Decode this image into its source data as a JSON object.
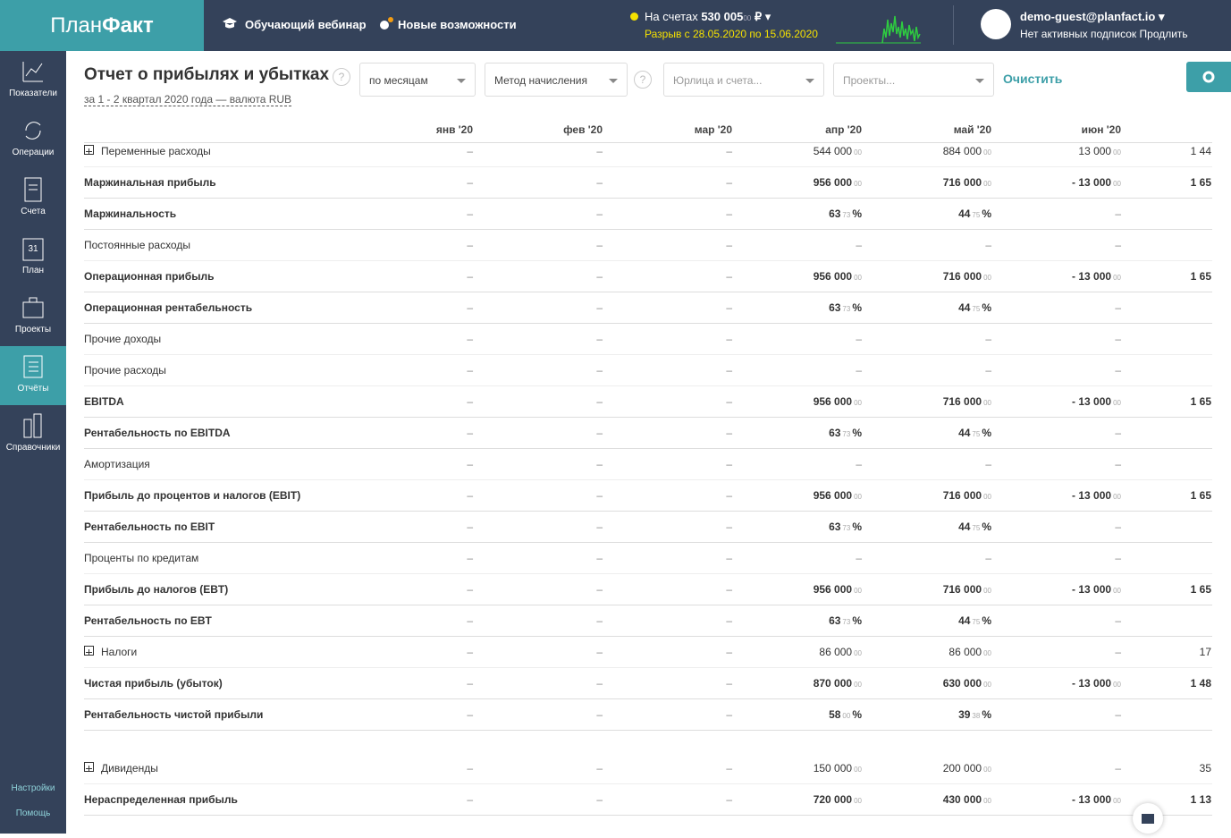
{
  "header": {
    "logo": {
      "light": "План",
      "bold": "Факт"
    },
    "webinar": "Обучающий вебинар",
    "features": "Новые возможности",
    "balance": {
      "label": "На счетах",
      "amount": "530 005",
      "frac": "00",
      "currency": "₽"
    },
    "gap": "Разрыв с 28.05.2020 по 15.06.2020",
    "user": {
      "email": "demo-guest@planfact.io",
      "subscription": "Нет активных подписок",
      "renew": "Продлить"
    }
  },
  "sidebar": {
    "items": [
      "Показатели",
      "Операции",
      "Счета",
      "План",
      "Проекты",
      "Отчёты",
      "Справочники"
    ],
    "active": 5,
    "calendar_day": "31",
    "bottom": [
      "Настройки",
      "Помощь"
    ]
  },
  "report": {
    "title": "Отчет о прибылях и убытках",
    "help": "?",
    "subtitle": "за 1 - 2 квартал 2020 года — валюта RUB",
    "filters": [
      "по месяцам",
      "Метод начисления",
      "Юрлица и счета...",
      "Проекты..."
    ],
    "clear": "Очистить",
    "columns": [
      "янв '20",
      "фев '20",
      "мар '20",
      "апр '20",
      "май '20",
      "июн '20"
    ],
    "rows": [
      {
        "label": "Переменные расходы",
        "expand": true,
        "values": [
          "–",
          "–",
          "–",
          {
            "main": "544 000",
            "frac": "00"
          },
          {
            "main": "884 000",
            "frac": "00"
          },
          {
            "main": "13 000",
            "frac": "00"
          },
          "1 44"
        ]
      },
      {
        "label": "Маржинальная прибыль",
        "bold": true,
        "values": [
          "–",
          "–",
          "–",
          {
            "main": "956 000",
            "frac": "00"
          },
          {
            "main": "716 000",
            "frac": "00"
          },
          {
            "main": "- 13 000",
            "frac": "00"
          },
          "1 65"
        ]
      },
      {
        "label": "Маржинальность",
        "bold": true,
        "values": [
          "–",
          "–",
          "–",
          {
            "main": "63",
            "frac": "73",
            "unit": "%"
          },
          {
            "main": "44",
            "frac": "75",
            "unit": "%"
          },
          "–",
          null
        ]
      },
      {
        "label": "Постоянные расходы",
        "values": [
          "–",
          "–",
          "–",
          "–",
          "–",
          "–",
          null
        ]
      },
      {
        "label": "Операционная прибыль",
        "bold": true,
        "values": [
          "–",
          "–",
          "–",
          {
            "main": "956 000",
            "frac": "00"
          },
          {
            "main": "716 000",
            "frac": "00"
          },
          {
            "main": "- 13 000",
            "frac": "00"
          },
          "1 65"
        ]
      },
      {
        "label": "Операционная рентабельность",
        "bold": true,
        "values": [
          "–",
          "–",
          "–",
          {
            "main": "63",
            "frac": "73",
            "unit": "%"
          },
          {
            "main": "44",
            "frac": "75",
            "unit": "%"
          },
          "–",
          null
        ]
      },
      {
        "label": "Прочие доходы",
        "values": [
          "–",
          "–",
          "–",
          "–",
          "–",
          "–",
          null
        ]
      },
      {
        "label": "Прочие расходы",
        "values": [
          "–",
          "–",
          "–",
          "–",
          "–",
          "–",
          null
        ]
      },
      {
        "label": "EBITDA",
        "bold": true,
        "values": [
          "–",
          "–",
          "–",
          {
            "main": "956 000",
            "frac": "00"
          },
          {
            "main": "716 000",
            "frac": "00"
          },
          {
            "main": "- 13 000",
            "frac": "00"
          },
          "1 65"
        ]
      },
      {
        "label": "Рентабельность по EBITDA",
        "bold": true,
        "values": [
          "–",
          "–",
          "–",
          {
            "main": "63",
            "frac": "73",
            "unit": "%"
          },
          {
            "main": "44",
            "frac": "75",
            "unit": "%"
          },
          "–",
          null
        ]
      },
      {
        "label": "Амортизация",
        "values": [
          "–",
          "–",
          "–",
          "–",
          "–",
          "–",
          null
        ]
      },
      {
        "label": "Прибыль до процентов и налогов (EBIT)",
        "bold": true,
        "values": [
          "–",
          "–",
          "–",
          {
            "main": "956 000",
            "frac": "00"
          },
          {
            "main": "716 000",
            "frac": "00"
          },
          {
            "main": "- 13 000",
            "frac": "00"
          },
          "1 65"
        ]
      },
      {
        "label": "Рентабельность по EBIT",
        "bold": true,
        "values": [
          "–",
          "–",
          "–",
          {
            "main": "63",
            "frac": "73",
            "unit": "%"
          },
          {
            "main": "44",
            "frac": "75",
            "unit": "%"
          },
          "–",
          null
        ]
      },
      {
        "label": "Проценты по кредитам",
        "values": [
          "–",
          "–",
          "–",
          "–",
          "–",
          "–",
          null
        ]
      },
      {
        "label": "Прибыль до налогов (EBT)",
        "bold": true,
        "values": [
          "–",
          "–",
          "–",
          {
            "main": "956 000",
            "frac": "00"
          },
          {
            "main": "716 000",
            "frac": "00"
          },
          {
            "main": "- 13 000",
            "frac": "00"
          },
          "1 65"
        ]
      },
      {
        "label": "Рентабельность по EBT",
        "bold": true,
        "values": [
          "–",
          "–",
          "–",
          {
            "main": "63",
            "frac": "73",
            "unit": "%"
          },
          {
            "main": "44",
            "frac": "75",
            "unit": "%"
          },
          "–",
          null
        ]
      },
      {
        "label": "Налоги",
        "expand": true,
        "values": [
          "–",
          "–",
          "–",
          {
            "main": "86 000",
            "frac": "00"
          },
          {
            "main": "86 000",
            "frac": "00"
          },
          "–",
          "17"
        ]
      },
      {
        "label": "Чистая прибыль (убыток)",
        "bold": true,
        "values": [
          "–",
          "–",
          "–",
          {
            "main": "870 000",
            "frac": "00"
          },
          {
            "main": "630 000",
            "frac": "00"
          },
          {
            "main": "- 13 000",
            "frac": "00"
          },
          "1 48"
        ]
      },
      {
        "label": "Рентабельность чистой прибыли",
        "bold": true,
        "values": [
          "–",
          "–",
          "–",
          {
            "main": "58",
            "frac": "00",
            "unit": "%"
          },
          {
            "main": "39",
            "frac": "38",
            "unit": "%"
          },
          "–",
          null
        ]
      },
      {
        "label": "Дивиденды",
        "expand": true,
        "values": [
          "–",
          "–",
          "–",
          {
            "main": "150 000",
            "frac": "00"
          },
          {
            "main": "200 000",
            "frac": "00"
          },
          "–",
          "35"
        ]
      },
      {
        "label": "Нераспределенная прибыль",
        "bold": true,
        "values": [
          "–",
          "–",
          "–",
          {
            "main": "720 000",
            "frac": "00"
          },
          {
            "main": "430 000",
            "frac": "00"
          },
          {
            "main": "- 13 000",
            "frac": "00"
          },
          "1 13"
        ]
      }
    ]
  }
}
